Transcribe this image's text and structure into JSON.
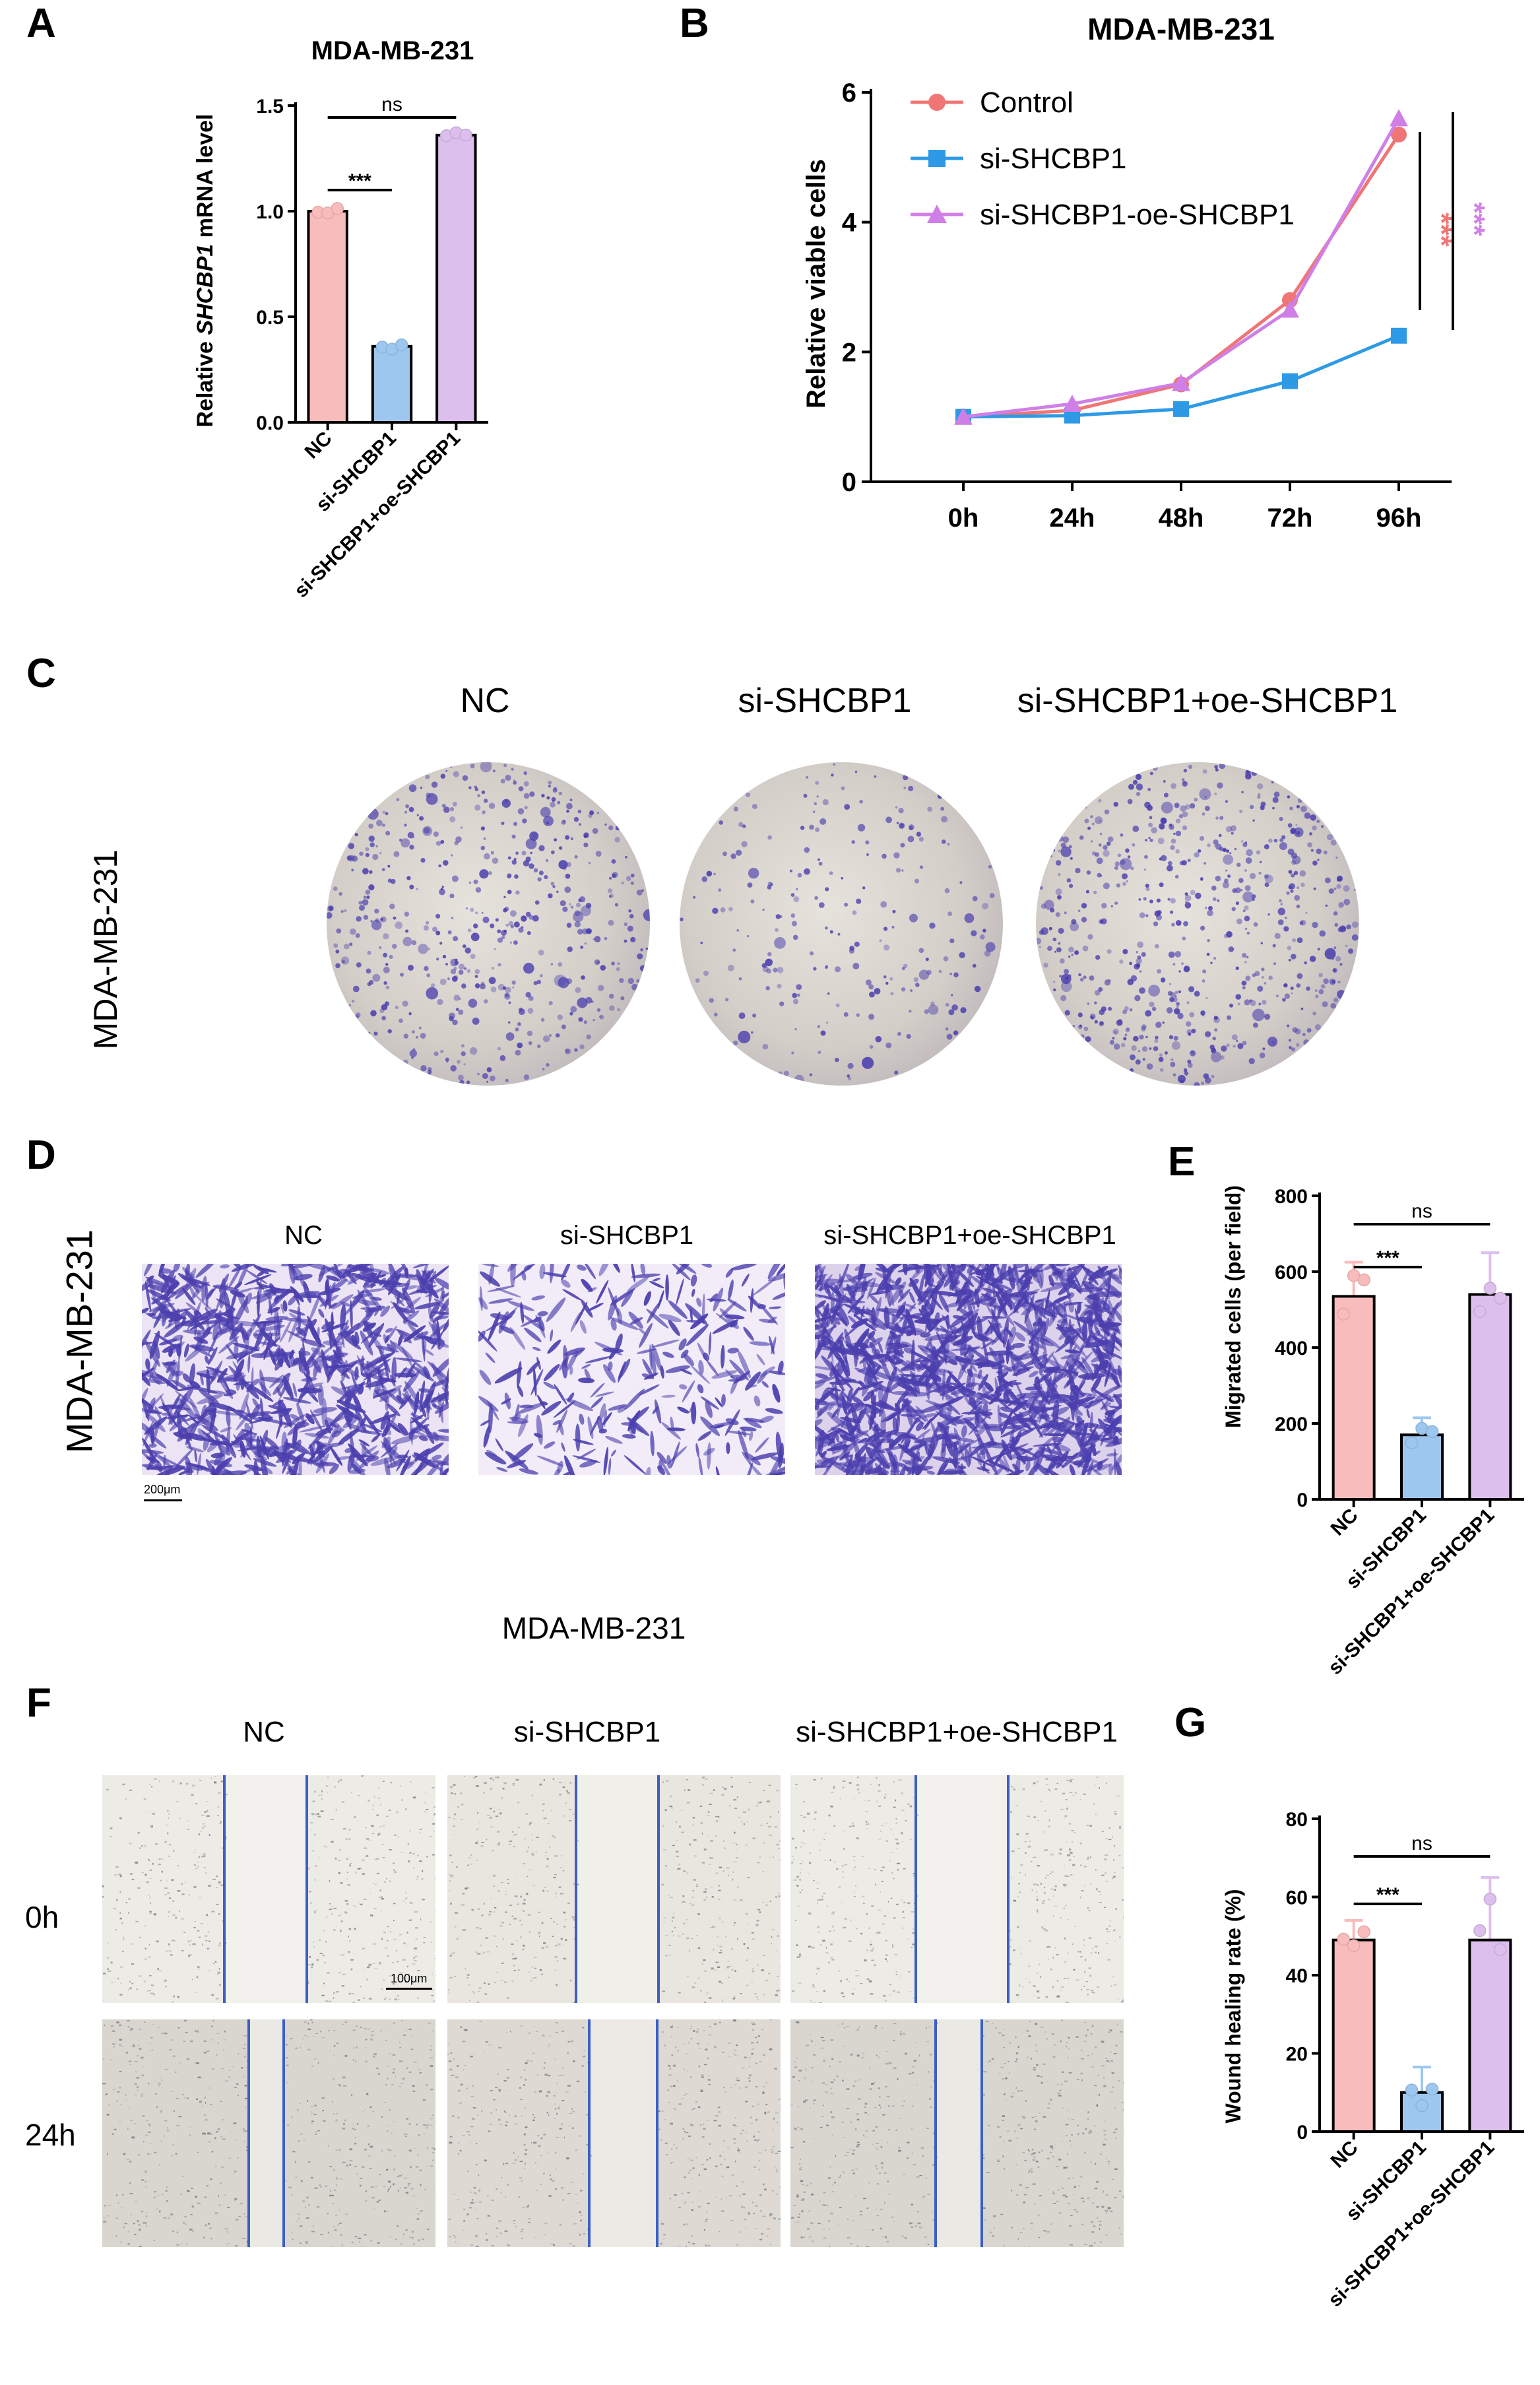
{
  "panel_letters": {
    "A": "A",
    "B": "B",
    "C": "C",
    "D": "D",
    "E": "E",
    "F": "F",
    "G": "G"
  },
  "colors": {
    "nc": "#f9bcbc",
    "si": "#9ec7ef",
    "oe": "#dcbfec",
    "control_line": "#f07575",
    "si_line": "#2e9ae6",
    "oe_line": "#cf7fe6",
    "stain": "#4b3fae",
    "wound_line": "#3d5fc4"
  },
  "chart_data": [
    {
      "panel": "A",
      "type": "bar",
      "title": "MDA-MB-231",
      "ylabel_prefix": "Relative ",
      "ylabel_italic": "SHCBP1",
      "ylabel_suffix": " mRNA level",
      "categories": [
        "NC",
        "si-SHCBP1",
        "si-SHCBP1+oe-SHCBP1"
      ],
      "values": [
        1.0,
        0.36,
        1.36
      ],
      "ylim": [
        0,
        1.5
      ],
      "yticks": [
        "0.0",
        "0.5",
        "1.0",
        "1.5"
      ],
      "significance": [
        {
          "pair": [
            0,
            1
          ],
          "label": "***"
        },
        {
          "pair": [
            0,
            2
          ],
          "label": "ns"
        }
      ]
    },
    {
      "panel": "B",
      "type": "line",
      "title": "MDA-MB-231",
      "ylabel": "Relative viable cells",
      "categories": [
        "0h",
        "24h",
        "48h",
        "72h",
        "96h"
      ],
      "yticks": [
        "0",
        "2",
        "4",
        "6"
      ],
      "ylim": [
        0,
        6
      ],
      "legend_position": "top-left",
      "series": [
        {
          "name": "Control",
          "values": [
            1.0,
            1.1,
            1.5,
            2.8,
            5.35
          ]
        },
        {
          "name": "si-SHCBP1",
          "values": [
            1.0,
            1.02,
            1.12,
            1.55,
            2.25
          ]
        },
        {
          "name": "si-SHCBP1-oe-SHCBP1",
          "values": [
            1.0,
            1.2,
            1.52,
            2.65,
            5.6
          ]
        }
      ],
      "significance": [
        "***",
        "***"
      ]
    },
    {
      "panel": "E",
      "type": "bar",
      "ylabel": "Migrated cells (per field)",
      "categories": [
        "NC",
        "si-SHCBP1",
        "si-SHCBP1+oe-SHCBP1"
      ],
      "values": [
        535,
        170,
        540
      ],
      "errors": [
        90,
        45,
        110
      ],
      "ylim": [
        0,
        800
      ],
      "yticks": [
        "0",
        "200",
        "400",
        "600",
        "800"
      ],
      "significance": [
        {
          "pair": [
            0,
            1
          ],
          "label": "***"
        },
        {
          "pair": [
            0,
            2
          ],
          "label": "ns"
        }
      ]
    },
    {
      "panel": "G",
      "type": "bar",
      "ylabel": "Wound healing rate (%)",
      "categories": [
        "NC",
        "si-SHCBP1",
        "si-SHCBP1+oe-SHCBP1"
      ],
      "values": [
        49,
        10,
        49
      ],
      "errors": [
        5,
        6.5,
        16
      ],
      "ylim": [
        0,
        80
      ],
      "yticks": [
        "0",
        "20",
        "40",
        "60",
        "80"
      ],
      "significance": [
        {
          "pair": [
            0,
            1
          ],
          "label": "***"
        },
        {
          "pair": [
            0,
            2
          ],
          "label": "ns"
        }
      ]
    }
  ],
  "colony": {
    "row_label": "MDA-MB-231",
    "headers": [
      "NC",
      "si-SHCBP1",
      "si-SHCBP1+oe-SHCBP1"
    ]
  },
  "transwell": {
    "row_label": "MDA-MB-231",
    "headers": [
      "NC",
      "si-SHCBP1",
      "si-SHCBP1+oe-SHCBP1"
    ],
    "scale_bar": "200μm"
  },
  "wound": {
    "title": "MDA-MB-231",
    "headers": [
      "NC",
      "si-SHCBP1",
      "si-SHCBP1+oe-SHCBP1"
    ],
    "rows": [
      "0h",
      "24h"
    ],
    "scale_bar": "100μm"
  }
}
